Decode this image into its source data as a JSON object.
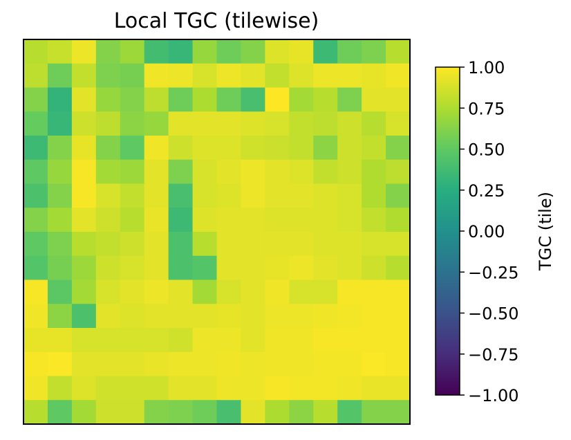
{
  "chart_data": {
    "type": "heatmap",
    "title": "Local TGC (tilewise)",
    "colorbar": {
      "label": "TGC (tile)",
      "range": [
        -1.0,
        1.0
      ],
      "ticks": [
        1.0,
        0.75,
        0.5,
        0.25,
        0.0,
        -0.25,
        -0.5,
        -0.75,
        -1.0
      ],
      "tick_labels": [
        "1.00",
        "0.75",
        "0.50",
        "0.25",
        "0.00",
        "−0.25",
        "−0.50",
        "−0.75",
        "−1.00"
      ],
      "colormap": "viridis"
    },
    "x_axis_ticks": false,
    "y_axis_ticks": false,
    "rows": 16,
    "cols": 16,
    "values": [
      [
        0.78,
        0.83,
        0.95,
        0.62,
        0.7,
        0.38,
        0.32,
        0.68,
        0.55,
        0.62,
        0.9,
        0.93,
        0.35,
        0.55,
        0.6,
        0.78
      ],
      [
        0.8,
        0.55,
        0.82,
        0.6,
        0.58,
        0.96,
        0.95,
        0.88,
        0.95,
        0.92,
        0.82,
        0.9,
        0.95,
        0.95,
        0.93,
        0.96
      ],
      [
        0.62,
        0.3,
        0.92,
        0.68,
        0.62,
        0.8,
        0.55,
        0.75,
        0.55,
        0.4,
        1.0,
        0.72,
        0.78,
        0.6,
        0.92,
        0.92
      ],
      [
        0.52,
        0.32,
        0.85,
        0.8,
        0.65,
        0.68,
        0.92,
        0.92,
        0.92,
        0.9,
        0.88,
        0.82,
        0.8,
        0.85,
        0.78,
        0.88
      ],
      [
        0.35,
        0.62,
        0.93,
        0.62,
        0.5,
        0.96,
        0.85,
        0.9,
        0.9,
        0.86,
        0.84,
        0.82,
        0.65,
        0.85,
        0.82,
        0.62
      ],
      [
        0.5,
        0.68,
        0.98,
        0.72,
        0.7,
        0.92,
        0.6,
        0.88,
        0.92,
        0.95,
        0.92,
        0.9,
        0.82,
        0.85,
        0.76,
        0.8
      ],
      [
        0.42,
        0.62,
        0.98,
        0.88,
        0.82,
        0.92,
        0.4,
        0.88,
        0.9,
        0.95,
        0.92,
        0.92,
        0.9,
        0.88,
        0.76,
        0.62
      ],
      [
        0.62,
        0.72,
        0.92,
        0.85,
        0.78,
        0.94,
        0.35,
        0.9,
        0.92,
        0.92,
        0.9,
        0.9,
        0.9,
        0.88,
        0.82,
        0.76
      ],
      [
        0.5,
        0.6,
        0.78,
        0.82,
        0.85,
        0.92,
        0.42,
        0.78,
        0.92,
        0.92,
        0.92,
        0.92,
        0.9,
        0.9,
        0.88,
        0.88
      ],
      [
        0.45,
        0.58,
        0.7,
        0.85,
        0.88,
        0.92,
        0.42,
        0.45,
        0.92,
        0.92,
        0.93,
        0.95,
        0.92,
        0.9,
        0.85,
        0.78
      ],
      [
        0.98,
        0.48,
        0.72,
        0.88,
        0.92,
        0.95,
        0.92,
        0.72,
        0.88,
        0.92,
        0.96,
        0.88,
        0.88,
        0.98,
        0.98,
        0.98
      ],
      [
        0.96,
        0.65,
        0.42,
        0.92,
        0.9,
        0.92,
        0.92,
        0.92,
        0.93,
        0.92,
        0.95,
        0.95,
        0.96,
        0.97,
        0.98,
        0.98
      ],
      [
        0.93,
        0.93,
        0.88,
        0.88,
        0.88,
        0.88,
        0.86,
        0.95,
        0.95,
        0.92,
        0.96,
        0.96,
        0.98,
        0.98,
        0.98,
        0.98
      ],
      [
        0.98,
        0.99,
        0.92,
        0.92,
        0.92,
        0.94,
        0.95,
        0.95,
        0.96,
        0.95,
        0.96,
        0.96,
        0.97,
        0.97,
        0.99,
        0.98
      ],
      [
        0.96,
        0.82,
        0.9,
        0.86,
        0.86,
        0.86,
        0.92,
        0.92,
        0.95,
        0.95,
        0.98,
        0.97,
        0.97,
        0.96,
        0.94,
        0.94
      ],
      [
        0.78,
        0.5,
        0.72,
        0.85,
        0.85,
        0.62,
        0.6,
        0.55,
        0.4,
        0.92,
        0.75,
        0.65,
        0.78,
        0.45,
        0.62,
        0.62
      ]
    ]
  }
}
